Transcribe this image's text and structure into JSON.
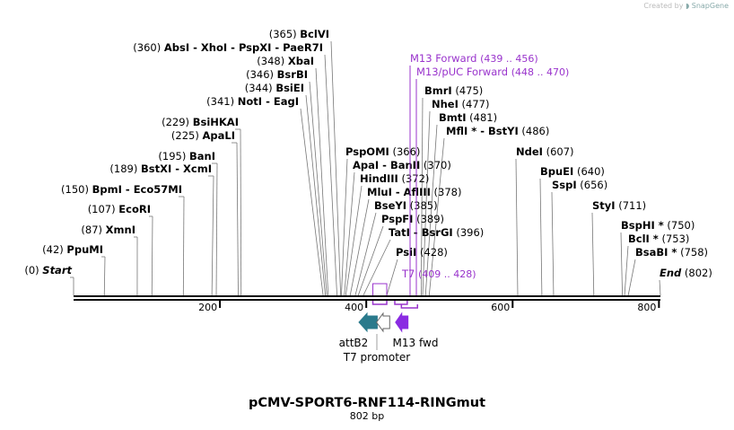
{
  "credit": {
    "prefix": "Created by",
    "brand": "SnapGene"
  },
  "title": "pCMV-SPORT6-RNF114-RINGmut",
  "length_label": "802 bp",
  "length_bp": 802,
  "colors": {
    "purple": "#9933cc",
    "attB2": "#2a7a8c",
    "m13fwd": "#8a2be2"
  },
  "enzymes_left": [
    {
      "parts": [
        "BclVI"
      ],
      "pos": "(365)",
      "site": 365
    },
    {
      "parts": [
        "AbsI",
        "XhoI",
        "PspXI",
        "PaeR7I"
      ],
      "pos": "(360)",
      "site": 360
    },
    {
      "parts": [
        "XbaI"
      ],
      "pos": "(348)",
      "site": 348
    },
    {
      "parts": [
        "BsrBI"
      ],
      "pos": "(346)",
      "site": 346
    },
    {
      "parts": [
        "BsiEI"
      ],
      "pos": "(344)",
      "site": 344
    },
    {
      "parts": [
        "NotI",
        "EagI"
      ],
      "pos": "(341)",
      "site": 341
    },
    {
      "parts": [
        "BsiHKAI"
      ],
      "pos": "(229)",
      "site": 229
    },
    {
      "parts": [
        "ApaLI"
      ],
      "pos": "(225)",
      "site": 225
    },
    {
      "parts": [
        "BanI"
      ],
      "pos": "(195)",
      "site": 195
    },
    {
      "parts": [
        "BstXI",
        "XcmI"
      ],
      "pos": "(189)",
      "site": 189
    },
    {
      "parts": [
        "BpmI",
        "Eco57MI"
      ],
      "pos": "(150)",
      "site": 150
    },
    {
      "parts": [
        "EcoRI"
      ],
      "pos": "(107)",
      "site": 107
    },
    {
      "parts": [
        "XmnI"
      ],
      "pos": "(87)",
      "site": 87
    },
    {
      "parts": [
        "PpuMI"
      ],
      "pos": "(42)",
      "site": 42
    },
    {
      "parts": [
        "Start"
      ],
      "pos": "(0)",
      "site": 0
    }
  ],
  "enzymes_mid": [
    {
      "parts": [
        "PspOMI"
      ],
      "pos": "(366)",
      "site": 366
    },
    {
      "parts": [
        "ApaI",
        "BanII"
      ],
      "pos": "(370)",
      "site": 370
    },
    {
      "parts": [
        "HindIII"
      ],
      "pos": "(372)",
      "site": 372
    },
    {
      "parts": [
        "MluI",
        "AflIII"
      ],
      "pos": "(378)",
      "site": 378
    },
    {
      "parts": [
        "BseYI"
      ],
      "pos": "(385)",
      "site": 385
    },
    {
      "parts": [
        "PspFI"
      ],
      "pos": "(389)",
      "site": 389
    },
    {
      "parts": [
        "TatI",
        "BsrGI"
      ],
      "pos": "(396)",
      "site": 396
    },
    {
      "parts": [
        "PsiI"
      ],
      "pos": "(428)",
      "site": 428
    }
  ],
  "enzymes_upper": [
    {
      "parts": [
        "BmrI"
      ],
      "pos": "(475)",
      "site": 475
    },
    {
      "parts": [
        "NheI"
      ],
      "pos": "(477)",
      "site": 477
    },
    {
      "parts": [
        "BmtI"
      ],
      "pos": "(481)",
      "site": 481
    },
    {
      "parts": [
        "MflI *",
        "BstYI"
      ],
      "pos": "(486)",
      "site": 486
    }
  ],
  "enzymes_right": [
    {
      "parts": [
        "NdeI"
      ],
      "pos": "(607)",
      "site": 607
    },
    {
      "parts": [
        "BpuEI"
      ],
      "pos": "(640)",
      "site": 640
    },
    {
      "parts": [
        "SspI"
      ],
      "pos": "(656)",
      "site": 656
    },
    {
      "parts": [
        "StyI"
      ],
      "pos": "(711)",
      "site": 711
    },
    {
      "parts": [
        "BspHI *"
      ],
      "pos": "(750)",
      "site": 750
    },
    {
      "parts": [
        "BclI *"
      ],
      "pos": "(753)",
      "site": 753
    },
    {
      "parts": [
        "BsaBI *"
      ],
      "pos": "(758)",
      "site": 758
    },
    {
      "parts": [
        "End"
      ],
      "pos": "(802)",
      "site": 802
    }
  ],
  "primers": [
    {
      "name": "M13 Forward",
      "range": "(439 .. 456)",
      "start": 439,
      "end": 456
    },
    {
      "name": "M13/pUC Forward",
      "range": "(448 .. 470)",
      "start": 448,
      "end": 470
    },
    {
      "name": "T7",
      "range": "(409 .. 428)",
      "start": 409,
      "end": 428
    }
  ],
  "ticks": [
    200,
    400,
    600,
    800
  ],
  "features": [
    {
      "name": "attB2",
      "start": 390,
      "end": 415,
      "direction": "left"
    },
    {
      "name": "T7 promoter",
      "start": 414,
      "end": 432,
      "direction": "left"
    },
    {
      "name": "M13 fwd",
      "start": 440,
      "end": 457,
      "direction": "left"
    }
  ]
}
